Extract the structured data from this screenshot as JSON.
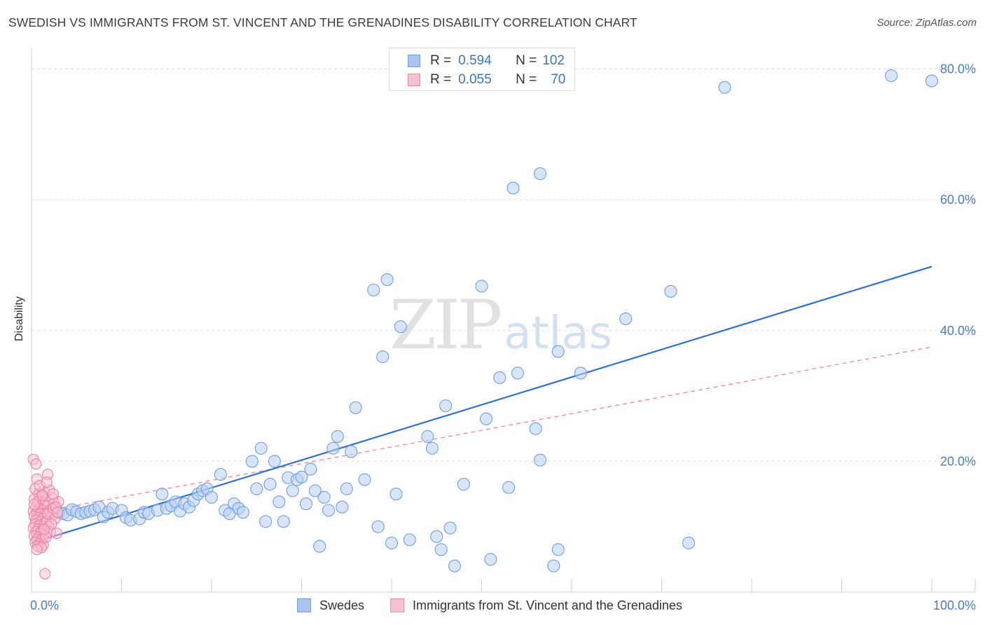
{
  "title": "SWEDISH VS IMMIGRANTS FROM ST. VINCENT AND THE GRENADINES DISABILITY CORRELATION CHART",
  "source": "Source: ZipAtlas.com",
  "watermark": {
    "zip": "ZIP",
    "atlas": "atlas"
  },
  "legend": {
    "r_label": "R =",
    "n_label": "N =",
    "rows": [
      {
        "r": "0.594",
        "n": "102",
        "color": "#a9c4ee",
        "border": "#6f9fe0"
      },
      {
        "r": "0.055",
        "n": "70",
        "color": "#f8bfd0",
        "border": "#ee8aa8"
      }
    ]
  },
  "colors": {
    "swedes_fill": "#b8d0f3",
    "swedes_stroke": "#6f9fe0",
    "swedes_line": "#2f6fcf",
    "svg_fill": "#f7bfd0",
    "svg_stroke": "#ee7fa3",
    "svg_line": "#e8809f",
    "grid": "#dddddd",
    "tick_label": "#4a7cc8"
  },
  "chart_data": {
    "type": "scatter",
    "title": "SWEDISH VS IMMIGRANTS FROM ST. VINCENT AND THE GRENADINES DISABILITY CORRELATION CHART",
    "xlabel": "",
    "ylabel": "Disability",
    "xlim": [
      0,
      100
    ],
    "ylim": [
      0,
      82
    ],
    "x_tick_labels": [
      "0.0%",
      "100.0%"
    ],
    "y_ticks": [
      20,
      40,
      60,
      80
    ],
    "y_tick_labels": [
      "20.0%",
      "40.0%",
      "60.0%",
      "80.0%"
    ],
    "grid": "horizontal dashed",
    "legend_position": "bottom",
    "series": [
      {
        "name": "Swedes",
        "r": 0.594,
        "n": 102,
        "trend": [
          [
            0,
            7.5
          ],
          [
            100,
            49.8
          ]
        ],
        "points": [
          [
            1.5,
            12.5
          ],
          [
            2,
            12.0
          ],
          [
            2.5,
            12.8
          ],
          [
            3,
            12.2
          ],
          [
            3.5,
            12.0
          ],
          [
            4,
            11.8
          ],
          [
            4.5,
            12.6
          ],
          [
            5,
            12.3
          ],
          [
            5.5,
            12.0
          ],
          [
            6,
            12.2
          ],
          [
            6.5,
            12.4
          ],
          [
            7,
            12.6
          ],
          [
            7.5,
            13.0
          ],
          [
            8,
            11.5
          ],
          [
            8.5,
            12.2
          ],
          [
            9,
            12.8
          ],
          [
            10,
            12.5
          ],
          [
            10.5,
            11.4
          ],
          [
            11,
            11.0
          ],
          [
            12,
            11.2
          ],
          [
            12.5,
            12.2
          ],
          [
            13,
            12.0
          ],
          [
            14,
            12.5
          ],
          [
            14.5,
            15.0
          ],
          [
            15,
            12.8
          ],
          [
            15.5,
            13.2
          ],
          [
            16,
            13.8
          ],
          [
            16.5,
            12.4
          ],
          [
            17,
            13.5
          ],
          [
            17.5,
            13.0
          ],
          [
            18,
            14.0
          ],
          [
            18.5,
            15.0
          ],
          [
            19,
            15.5
          ],
          [
            19.5,
            15.8
          ],
          [
            20,
            14.5
          ],
          [
            21,
            18.0
          ],
          [
            21.5,
            12.5
          ],
          [
            22,
            12.0
          ],
          [
            22.5,
            13.5
          ],
          [
            23,
            12.8
          ],
          [
            23.5,
            12.2
          ],
          [
            24.5,
            20.0
          ],
          [
            25,
            15.8
          ],
          [
            25.5,
            22.0
          ],
          [
            26,
            10.8
          ],
          [
            26.5,
            16.5
          ],
          [
            27,
            20.0
          ],
          [
            27.5,
            13.8
          ],
          [
            28,
            10.8
          ],
          [
            28.5,
            17.5
          ],
          [
            29,
            15.5
          ],
          [
            29.5,
            17.2
          ],
          [
            30,
            17.6
          ],
          [
            30.5,
            13.5
          ],
          [
            31,
            18.8
          ],
          [
            31.5,
            15.5
          ],
          [
            32,
            7.0
          ],
          [
            32.5,
            14.5
          ],
          [
            33,
            12.5
          ],
          [
            33.5,
            22.0
          ],
          [
            34,
            23.8
          ],
          [
            34.5,
            13.0
          ],
          [
            35,
            15.8
          ],
          [
            35.5,
            21.5
          ],
          [
            36,
            28.2
          ],
          [
            37,
            17.2
          ],
          [
            38,
            46.2
          ],
          [
            38.5,
            10.0
          ],
          [
            39,
            36.0
          ],
          [
            39.5,
            47.8
          ],
          [
            40,
            7.5
          ],
          [
            40.5,
            15.0
          ],
          [
            41,
            40.6
          ],
          [
            42,
            8.0
          ],
          [
            44,
            23.8
          ],
          [
            44.5,
            22.0
          ],
          [
            45,
            8.5
          ],
          [
            45.5,
            6.5
          ],
          [
            46,
            28.5
          ],
          [
            46.5,
            9.8
          ],
          [
            47,
            4.0
          ],
          [
            48,
            16.5
          ],
          [
            50,
            46.8
          ],
          [
            50.5,
            26.5
          ],
          [
            51,
            5.0
          ],
          [
            52,
            32.8
          ],
          [
            53,
            16.0
          ],
          [
            53.5,
            61.8
          ],
          [
            54,
            33.5
          ],
          [
            56,
            25.0
          ],
          [
            56.5,
            20.2
          ],
          [
            56.5,
            64.0
          ],
          [
            58,
            4.0
          ],
          [
            58.5,
            36.8
          ],
          [
            58.5,
            6.5
          ],
          [
            61,
            33.5
          ],
          [
            66,
            41.8
          ],
          [
            71,
            46.0
          ],
          [
            73,
            7.5
          ],
          [
            77,
            77.2
          ],
          [
            95.5,
            79.0
          ],
          [
            100,
            78.2
          ]
        ]
      },
      {
        "name": "Immigrants from St. Vincent and the Grenadines",
        "r": 0.055,
        "n": 70,
        "trend": [
          [
            0,
            12.0
          ],
          [
            100,
            37.5
          ]
        ],
        "points": [
          [
            0.2,
            20.3
          ],
          [
            0.5,
            19.6
          ],
          [
            0.6,
            17.3
          ],
          [
            0.4,
            15.8
          ],
          [
            0.8,
            15.0
          ],
          [
            1.0,
            14.6
          ],
          [
            0.3,
            14.2
          ],
          [
            0.7,
            13.8
          ],
          [
            1.2,
            13.4
          ],
          [
            0.5,
            13.0
          ],
          [
            0.9,
            12.8
          ],
          [
            1.3,
            12.6
          ],
          [
            0.2,
            12.4
          ],
          [
            0.6,
            12.2
          ],
          [
            1.0,
            12.0
          ],
          [
            1.4,
            11.8
          ],
          [
            0.3,
            11.6
          ],
          [
            0.8,
            11.4
          ],
          [
            1.2,
            11.2
          ],
          [
            0.5,
            11.0
          ],
          [
            1.0,
            10.8
          ],
          [
            1.5,
            10.6
          ],
          [
            0.4,
            10.4
          ],
          [
            0.9,
            10.2
          ],
          [
            1.3,
            10.0
          ],
          [
            0.2,
            9.8
          ],
          [
            0.7,
            9.6
          ],
          [
            1.1,
            9.4
          ],
          [
            0.5,
            9.2
          ],
          [
            1.0,
            9.0
          ],
          [
            1.4,
            8.8
          ],
          [
            0.3,
            8.6
          ],
          [
            0.8,
            8.4
          ],
          [
            1.2,
            8.2
          ],
          [
            0.6,
            8.0
          ],
          [
            1.0,
            7.8
          ],
          [
            0.4,
            7.6
          ],
          [
            0.9,
            7.4
          ],
          [
            1.3,
            7.2
          ],
          [
            0.7,
            7.0
          ],
          [
            1.6,
            14.0
          ],
          [
            1.8,
            13.2
          ],
          [
            2.0,
            12.4
          ],
          [
            2.2,
            11.6
          ],
          [
            1.7,
            10.8
          ],
          [
            1.9,
            10.0
          ],
          [
            2.1,
            9.2
          ],
          [
            1.6,
            8.4
          ],
          [
            2.3,
            14.4
          ],
          [
            2.5,
            13.6
          ],
          [
            1.5,
            15.2
          ],
          [
            2.0,
            15.6
          ],
          [
            1.8,
            12.0
          ],
          [
            2.4,
            12.8
          ],
          [
            2.6,
            11.2
          ],
          [
            2.2,
            10.4
          ],
          [
            1.4,
            9.6
          ],
          [
            2.8,
            9.0
          ],
          [
            3.0,
            13.8
          ],
          [
            2.7,
            13.0
          ],
          [
            1.1,
            6.8
          ],
          [
            0.6,
            6.5
          ],
          [
            1.5,
            2.8
          ],
          [
            1.8,
            18.0
          ],
          [
            0.9,
            16.3
          ],
          [
            1.7,
            16.8
          ],
          [
            2.4,
            15.0
          ],
          [
            0.3,
            13.4
          ],
          [
            1.2,
            14.8
          ],
          [
            2.9,
            12.2
          ]
        ]
      }
    ]
  }
}
